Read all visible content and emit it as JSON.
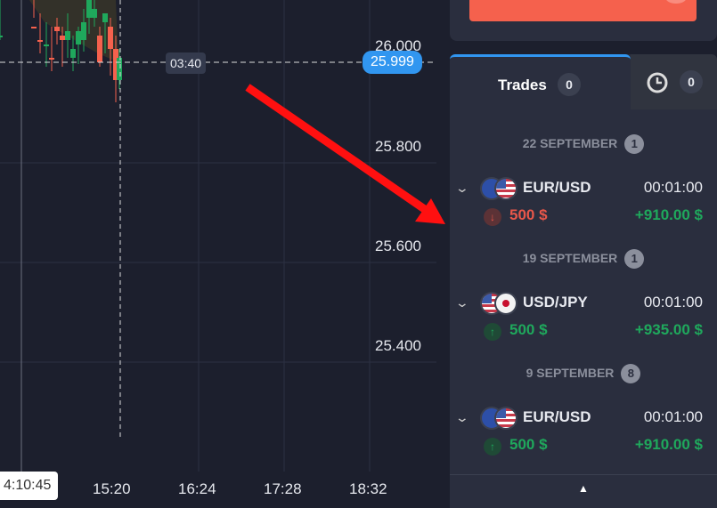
{
  "chart": {
    "y_ticks": [
      "26.000",
      "25.800",
      "25.600",
      "25.400"
    ],
    "x_ticks": [
      "15:20",
      "16:24",
      "17:28",
      "18:32"
    ],
    "current_time": "4:10:45",
    "timer": "03:40",
    "price": "25.999",
    "up_color": "#1fa85c",
    "down_color": "#f5614d"
  },
  "panel": {
    "tabs": [
      {
        "label": "Trades",
        "count": "0"
      },
      {
        "icon": "clock-icon",
        "count": "0"
      }
    ],
    "groups": [
      {
        "date": "22 SEPTEMBER",
        "count": "1",
        "trades": [
          {
            "pair": "EUR/USD",
            "flags": [
              "eu",
              "us"
            ],
            "duration": "00:01:00",
            "direction": "down",
            "amount": "500 $",
            "payout": "+910.00 $"
          }
        ]
      },
      {
        "date": "19 SEPTEMBER",
        "count": "1",
        "trades": [
          {
            "pair": "USD/JPY",
            "flags": [
              "us",
              "jp"
            ],
            "duration": "00:01:00",
            "direction": "up",
            "amount": "500 $",
            "payout": "+935.00 $"
          }
        ]
      },
      {
        "date": "9 SEPTEMBER",
        "count": "8",
        "trades": [
          {
            "pair": "EUR/USD",
            "flags": [
              "eu",
              "us"
            ],
            "duration": "00:01:00",
            "direction": "up",
            "amount": "500 $",
            "payout": "+910.00 $"
          }
        ]
      }
    ],
    "scroll_up_icon": "▲"
  }
}
